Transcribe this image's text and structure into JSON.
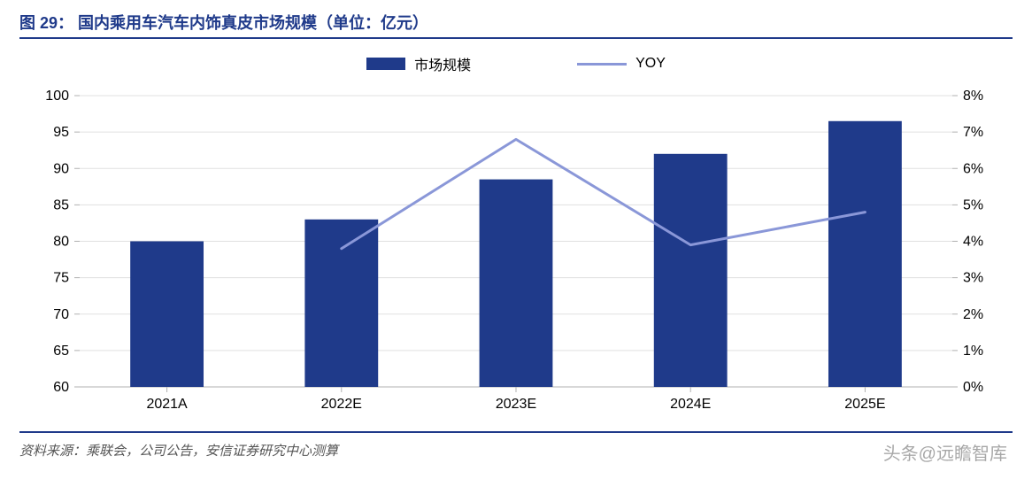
{
  "accent_color": "#1f3a8a",
  "title": {
    "fig": "图 29：",
    "text": "国内乘用车汽车内饰真皮市场规模（单位：亿元）"
  },
  "legend": {
    "bar": "市场规模",
    "line": "YOY"
  },
  "chart": {
    "type": "bar+line",
    "categories": [
      "2021A",
      "2022E",
      "2023E",
      "2024E",
      "2025E"
    ],
    "bars": {
      "values": [
        80,
        83,
        88.5,
        92,
        96.5
      ],
      "color": "#1f3a8a",
      "width": 0.42
    },
    "line": {
      "values": [
        null,
        3.8,
        6.8,
        3.9,
        4.8
      ],
      "color": "#8a97d8",
      "width": 3
    },
    "y_left": {
      "min": 60,
      "max": 100,
      "step": 5
    },
    "y_right": {
      "min": 0,
      "max": 8,
      "step": 1,
      "suffix": "%"
    },
    "axis_fontsize": 16,
    "grid_color": "#e0e0e0",
    "baseline_color": "#b0b0b0"
  },
  "source": "资料来源：乘联会，公司公告，安信证券研究中心测算",
  "watermark": "头条@远瞻智库"
}
